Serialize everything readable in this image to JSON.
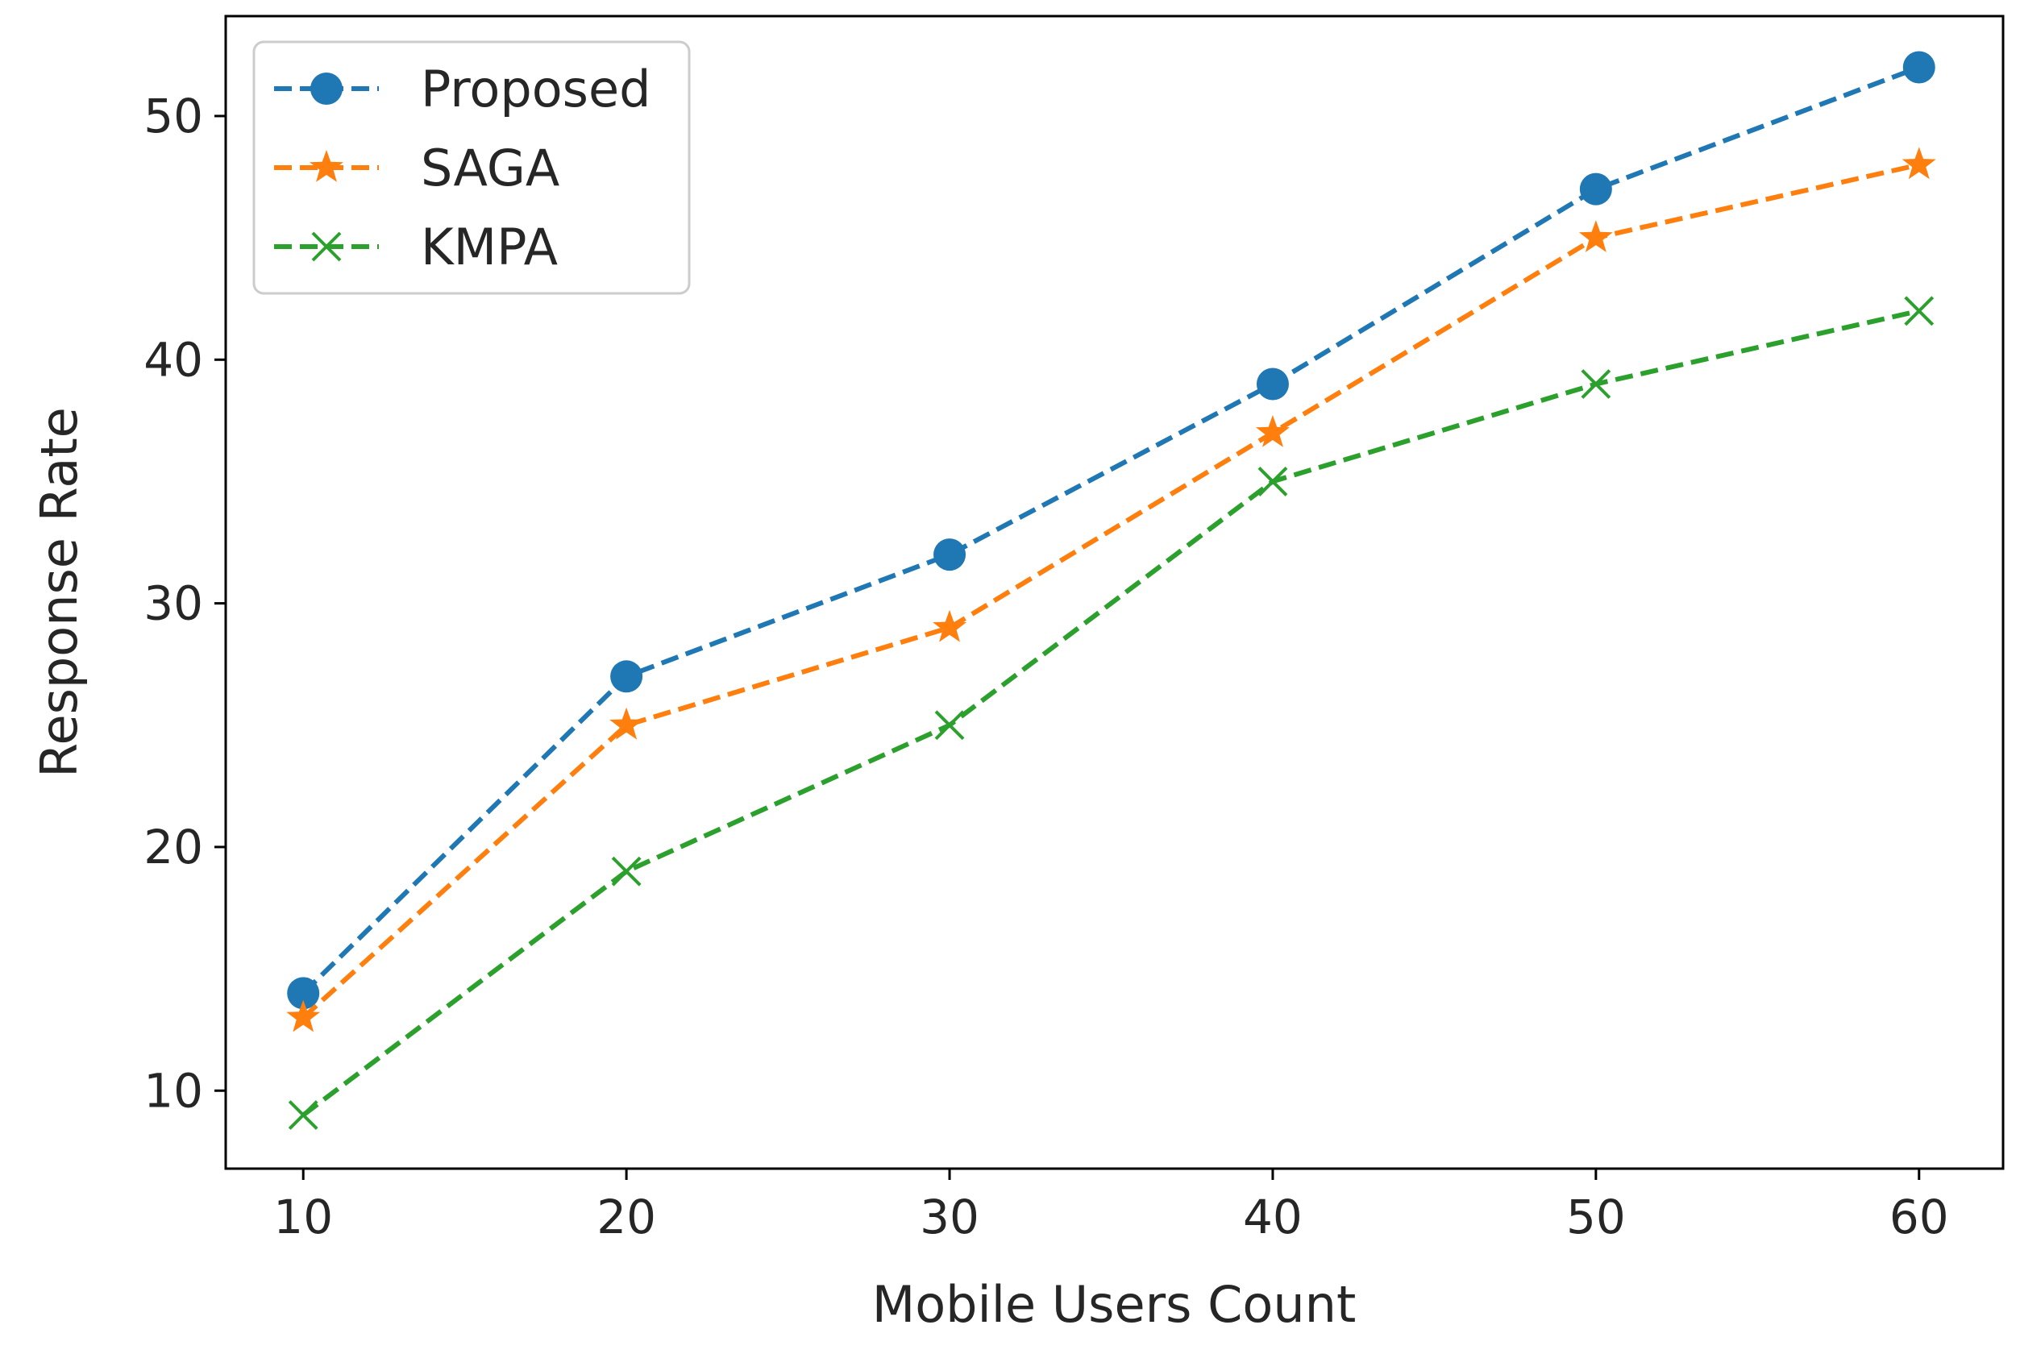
{
  "chart_data": {
    "type": "line",
    "title": "",
    "xlabel": "Mobile Users Count",
    "ylabel": "Response Rate",
    "x": [
      10,
      20,
      30,
      40,
      50,
      60
    ],
    "x_ticks": [
      "10",
      "20",
      "30",
      "40",
      "50",
      "60"
    ],
    "y_ticks": [
      "10",
      "20",
      "30",
      "40",
      "50"
    ],
    "xlim": [
      7.6,
      62.6
    ],
    "ylim": [
      6.8,
      54.1
    ],
    "grid": false,
    "legend_position": "top-left",
    "series": [
      {
        "name": "Proposed",
        "values": [
          14,
          27,
          32,
          39,
          47,
          52
        ],
        "color": "#1f77b4",
        "marker": "circle"
      },
      {
        "name": "SAGA",
        "values": [
          13,
          25,
          29,
          37,
          45,
          48
        ],
        "color": "#ff7f0e",
        "marker": "star"
      },
      {
        "name": "KMPA",
        "values": [
          9,
          19,
          25,
          35,
          39,
          42
        ],
        "color": "#2ca02c",
        "marker": "x"
      }
    ]
  }
}
